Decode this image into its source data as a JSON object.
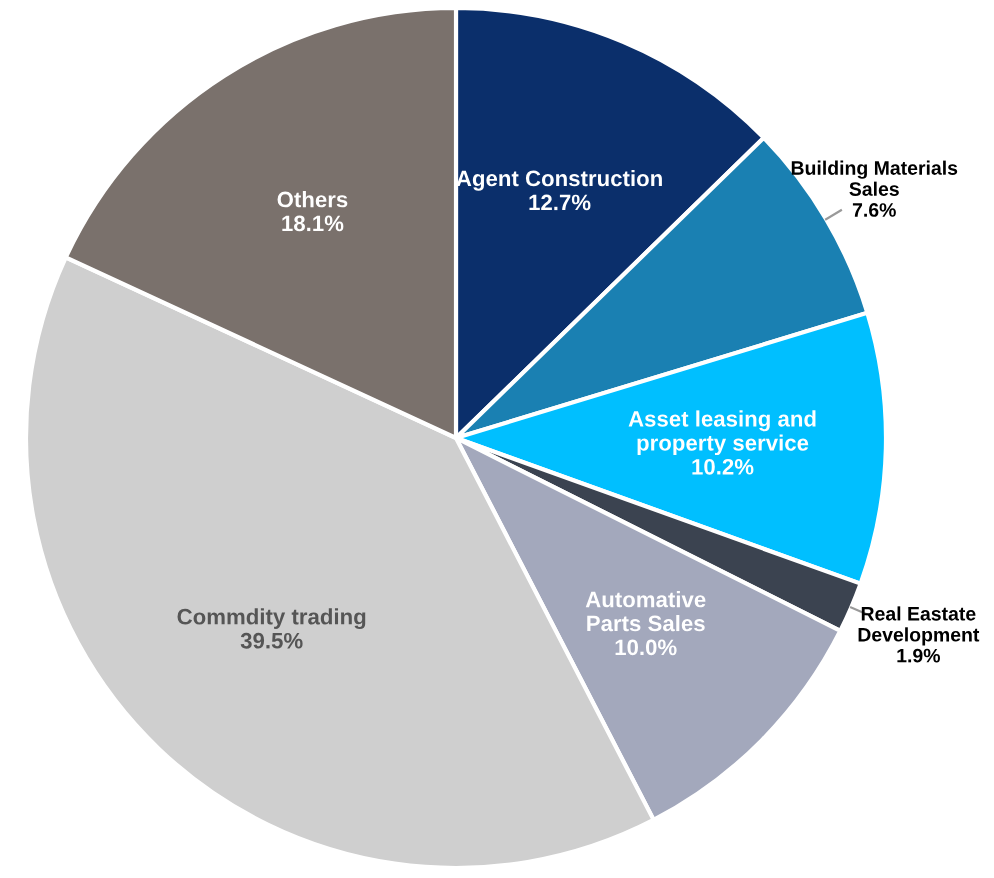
{
  "chart_data": {
    "type": "pie",
    "categories": [
      "Agent Construction",
      "Building Materials\nSales",
      "Asset leasing and\nproperty service",
      "Real Eastate\nDevelopment",
      "Automative\nParts Sales",
      "Commdity trading",
      "Others"
    ],
    "values": [
      12.7,
      7.6,
      10.2,
      1.9,
      10.0,
      39.5,
      18.1
    ],
    "colors": [
      "#0b2f6b",
      "#1a80b2",
      "#00bfff",
      "#3b4350",
      "#a3a8bc",
      "#cfcfcf",
      "#7a716c"
    ],
    "value_labels": [
      "12.7%",
      "7.6%",
      "10.2%",
      "1.9%",
      "10.0%",
      "39.5%",
      "18.1%"
    ]
  }
}
